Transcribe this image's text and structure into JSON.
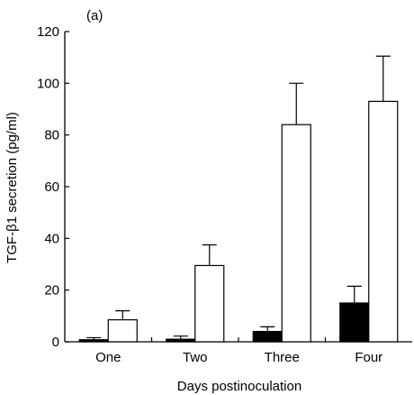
{
  "panel_label": "(a)",
  "chart_data": {
    "type": "bar",
    "categories": [
      "One",
      "Two",
      "Three",
      "Four"
    ],
    "series": [
      {
        "fill": "#000000",
        "values": [
          0.8,
          1.0,
          4.0,
          15.0
        ],
        "errors": [
          0.8,
          1.2,
          1.8,
          6.5
        ]
      },
      {
        "fill": "#ffffff",
        "values": [
          8.5,
          29.5,
          84.0,
          93.0
        ],
        "errors": [
          3.5,
          8.0,
          16.0,
          17.5
        ]
      }
    ],
    "xlabel": "Days postinoculation",
    "ylabel": "TGF-β1 secretion (pg/ml)",
    "ylim": [
      0,
      120
    ],
    "yticks": [
      0,
      20,
      40,
      60,
      80,
      100,
      120
    ]
  }
}
